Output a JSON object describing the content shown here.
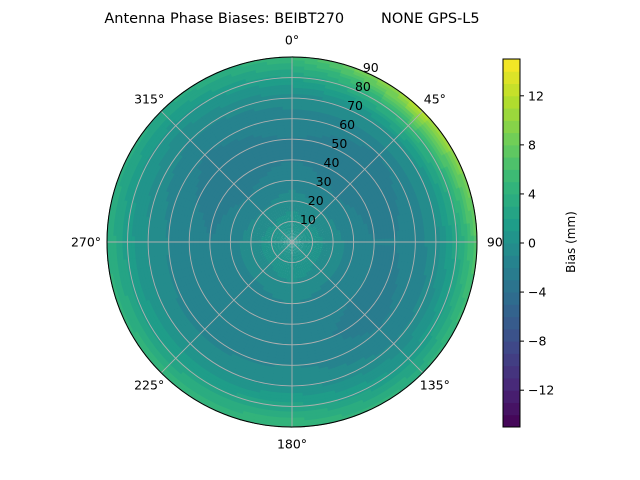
{
  "chart_data": {
    "type": "heatmap",
    "subtype": "polar-contour",
    "title": "Antenna Phase Biases: BEIBT270        NONE GPS-L5",
    "angular_tick_labels": [
      "0°",
      "45°",
      "90°",
      "135°",
      "180°",
      "225°",
      "270°",
      "315°"
    ],
    "radial_tick_labels": [
      "10",
      "20",
      "30",
      "40",
      "50",
      "60",
      "70",
      "80",
      "90"
    ],
    "radial_range": [
      0,
      90
    ],
    "colorbar": {
      "label": "Bias (mm)",
      "range": [
        -15,
        15
      ],
      "levels_step": 1,
      "ticks": [
        -12,
        -8,
        -4,
        0,
        4,
        8,
        12
      ],
      "tick_labels": [
        "−12",
        "−8",
        "−4",
        "0",
        "4",
        "8",
        "12"
      ],
      "colormap": "viridis"
    },
    "grid": true,
    "zenith": [
      0,
      10,
      20,
      30,
      40,
      50,
      60,
      70,
      80,
      90
    ],
    "azimuth": [
      0,
      45,
      90,
      135,
      180,
      225,
      270,
      315
    ],
    "values_mm": [
      [
        1,
        1,
        1,
        1,
        1,
        1,
        1,
        1
      ],
      [
        0.5,
        0.3,
        0.5,
        0.5,
        0.8,
        0.5,
        0.5,
        0.3
      ],
      [
        -0.5,
        -1,
        -0.5,
        -0.5,
        0,
        -0.5,
        -0.5,
        -1
      ],
      [
        -1.5,
        -2,
        -1.5,
        -1.5,
        -1,
        -1.5,
        -1.5,
        -2
      ],
      [
        -2,
        -2.5,
        -2,
        -2,
        -1.5,
        -2,
        -2,
        -2.5
      ],
      [
        -2,
        -2.5,
        -2,
        -2.5,
        -1.5,
        -2,
        -1.5,
        -2.5
      ],
      [
        -1.5,
        -2,
        -1.5,
        -2,
        -1,
        -1.5,
        -1,
        -2
      ],
      [
        -0.5,
        0,
        -0.5,
        -1,
        0,
        0,
        0,
        -1
      ],
      [
        2,
        5,
        2.5,
        1,
        2.5,
        2,
        1.5,
        0.5
      ],
      [
        5,
        12,
        7,
        4,
        5,
        5,
        4,
        3
      ]
    ]
  }
}
